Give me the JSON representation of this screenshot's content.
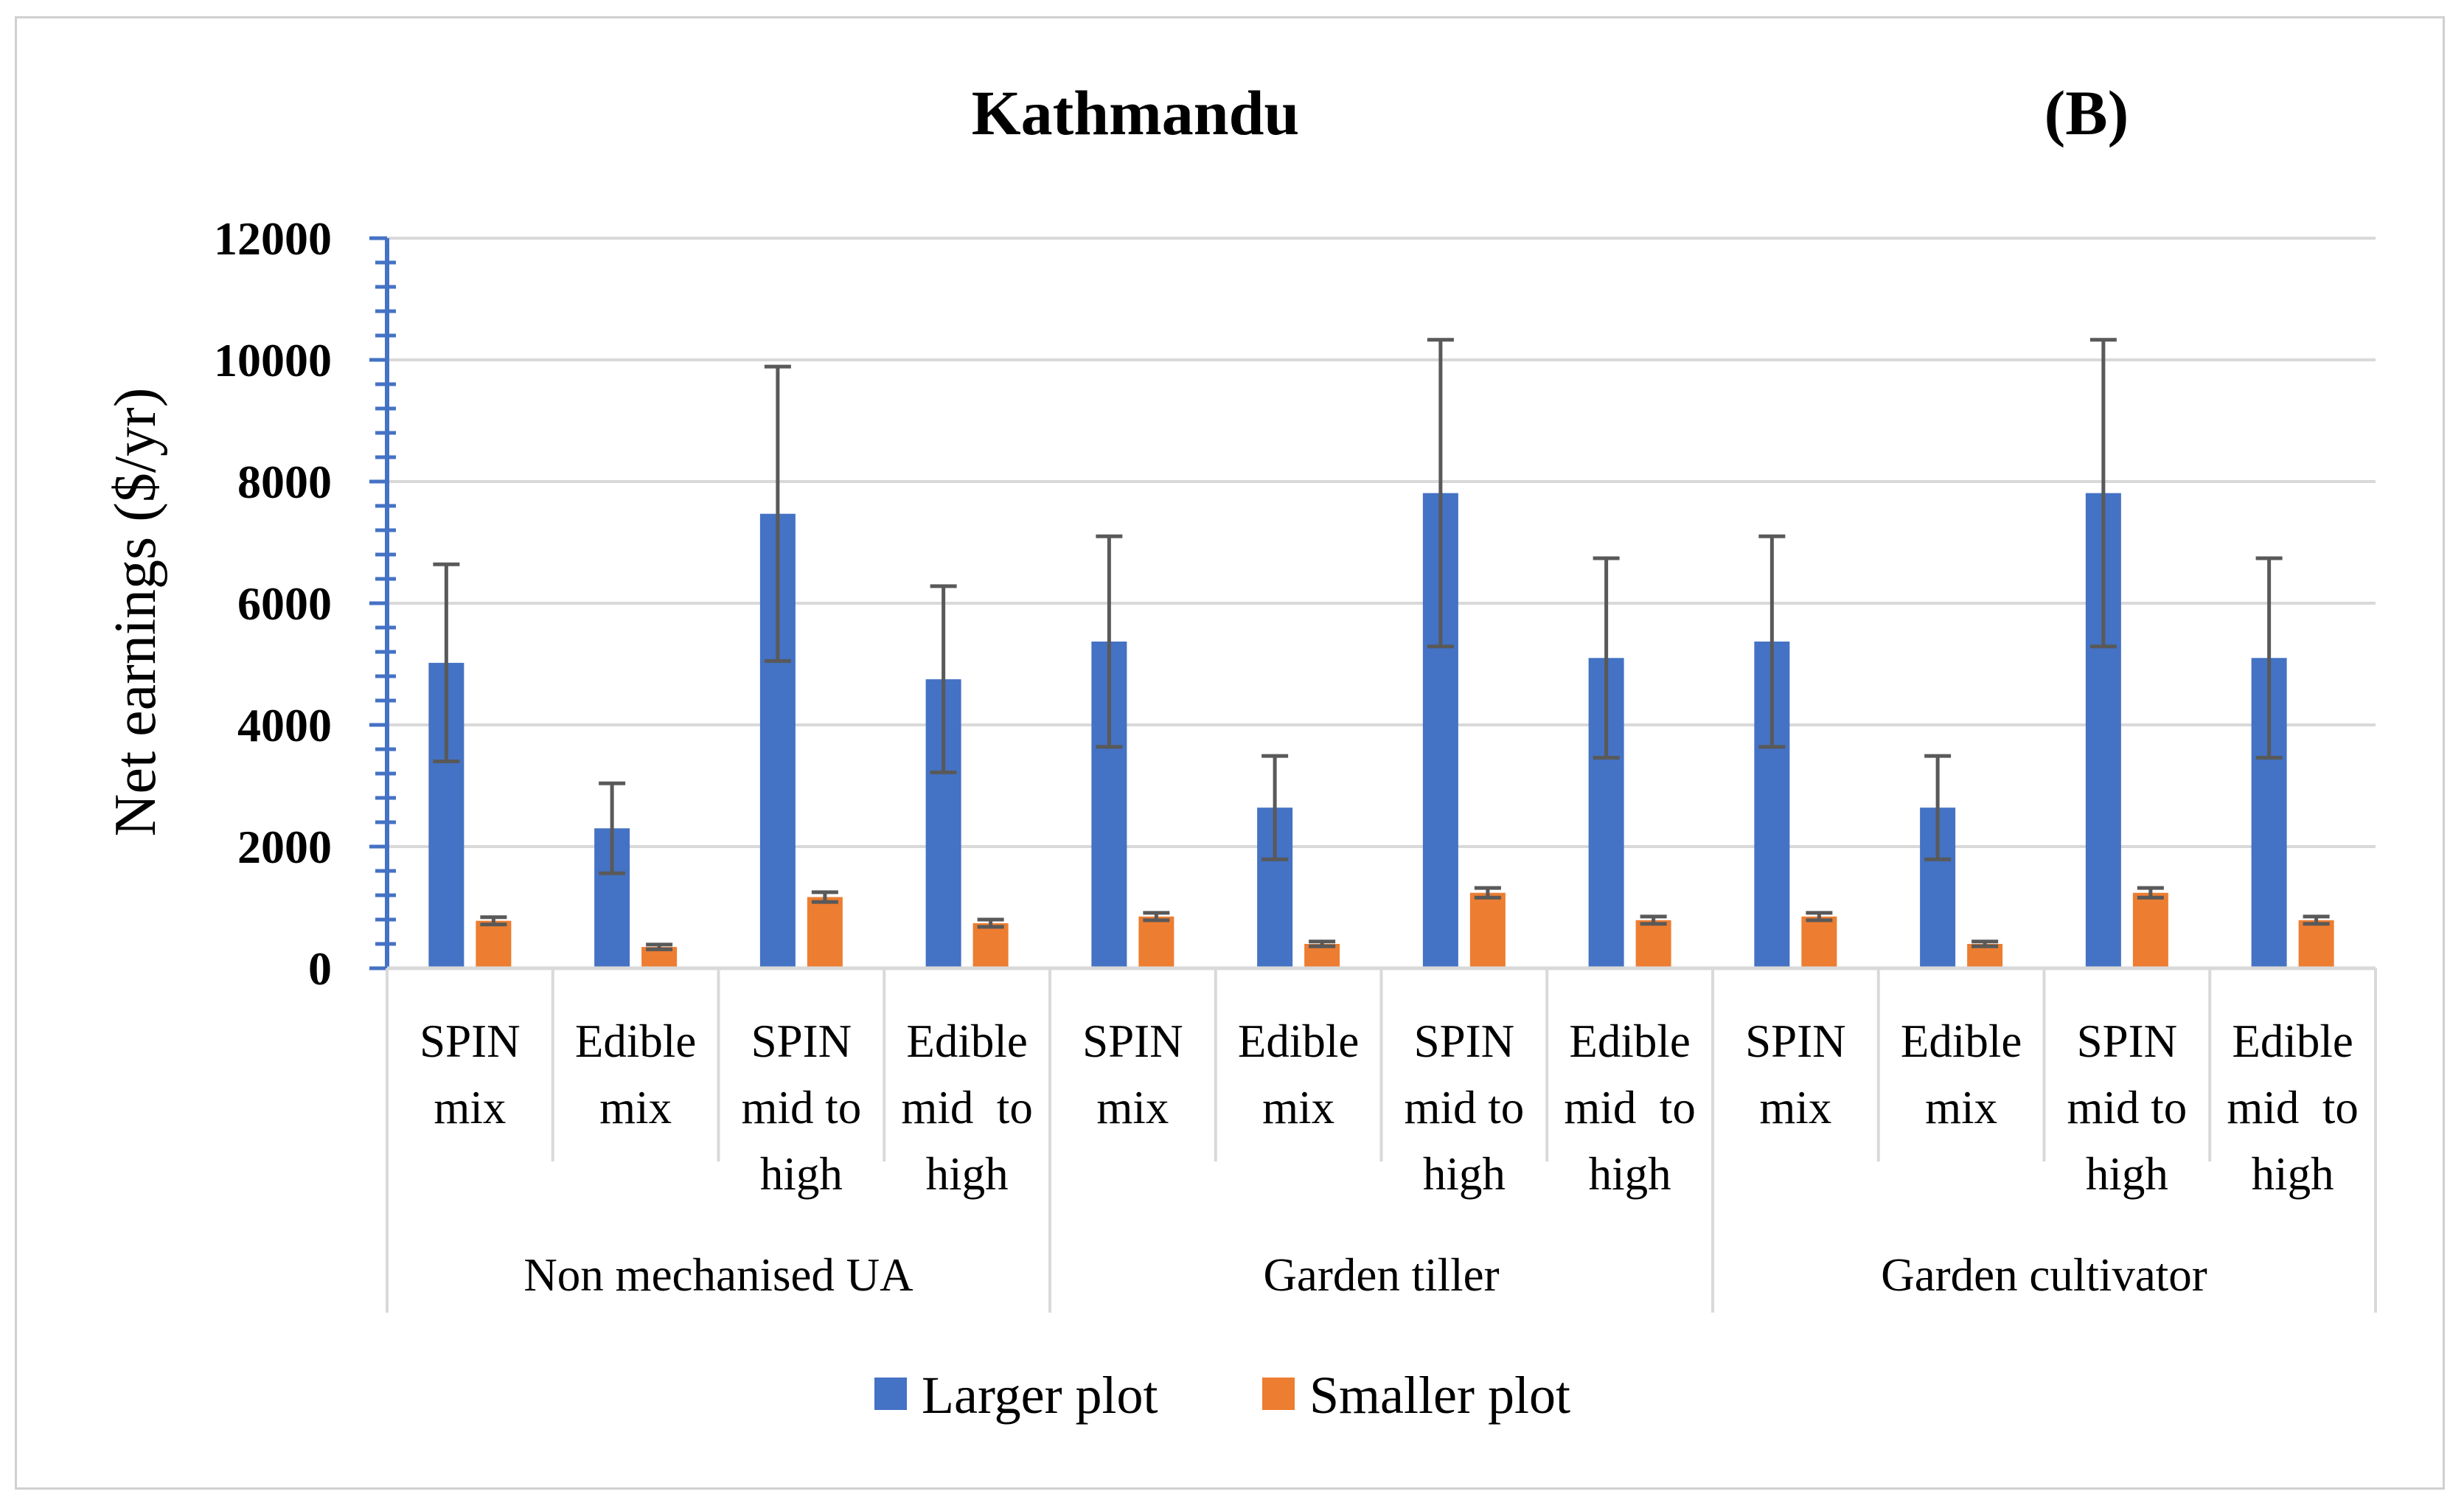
{
  "chart_data": {
    "type": "bar",
    "title": "Kathmandu",
    "panel_label": "(B)",
    "ylabel": "Net earnings ($/yr)",
    "xlabel": "",
    "ylim": [
      0,
      12000
    ],
    "ytick_step": 2000,
    "yticks": [
      "0",
      "2000",
      "4000",
      "6000",
      "8000",
      "10000",
      "12000"
    ],
    "grid": true,
    "legend_position": "bottom",
    "groups": [
      {
        "label": "Non mechanised UA",
        "categories": [
          [
            "SPIN",
            "mix"
          ],
          [
            "Edible",
            "mix"
          ],
          [
            "SPIN",
            "mid to",
            "high"
          ],
          [
            "Edible",
            "mid  to",
            "high"
          ]
        ]
      },
      {
        "label": "Garden tiller",
        "categories": [
          [
            "SPIN",
            "mix"
          ],
          [
            "Edible",
            "mix"
          ],
          [
            "SPIN",
            "mid to",
            "high"
          ],
          [
            "Edible",
            "mid  to",
            "high"
          ]
        ]
      },
      {
        "label": "Garden cultivator",
        "categories": [
          [
            "SPIN",
            "mix"
          ],
          [
            "Edible",
            "mix"
          ],
          [
            "SPIN",
            "mid to",
            "high"
          ],
          [
            "Edible",
            "mid  to",
            "high"
          ]
        ]
      }
    ],
    "series": [
      {
        "name": "Larger plot",
        "color": "#4472C4",
        "values": [
          5020,
          2300,
          7470,
          4750,
          5370,
          2640,
          7810,
          5100,
          5370,
          2640,
          7810,
          5100
        ],
        "error": [
          1620,
          740,
          2420,
          1530,
          1730,
          850,
          2520,
          1640,
          1730,
          850,
          2520,
          1640
        ]
      },
      {
        "name": "Smaller plot",
        "color": "#ED7D31",
        "values": [
          780,
          350,
          1170,
          740,
          850,
          400,
          1240,
          790,
          850,
          400,
          1240,
          790
        ],
        "error": [
          60,
          40,
          80,
          60,
          60,
          40,
          80,
          60,
          60,
          40,
          80,
          60
        ]
      }
    ]
  }
}
